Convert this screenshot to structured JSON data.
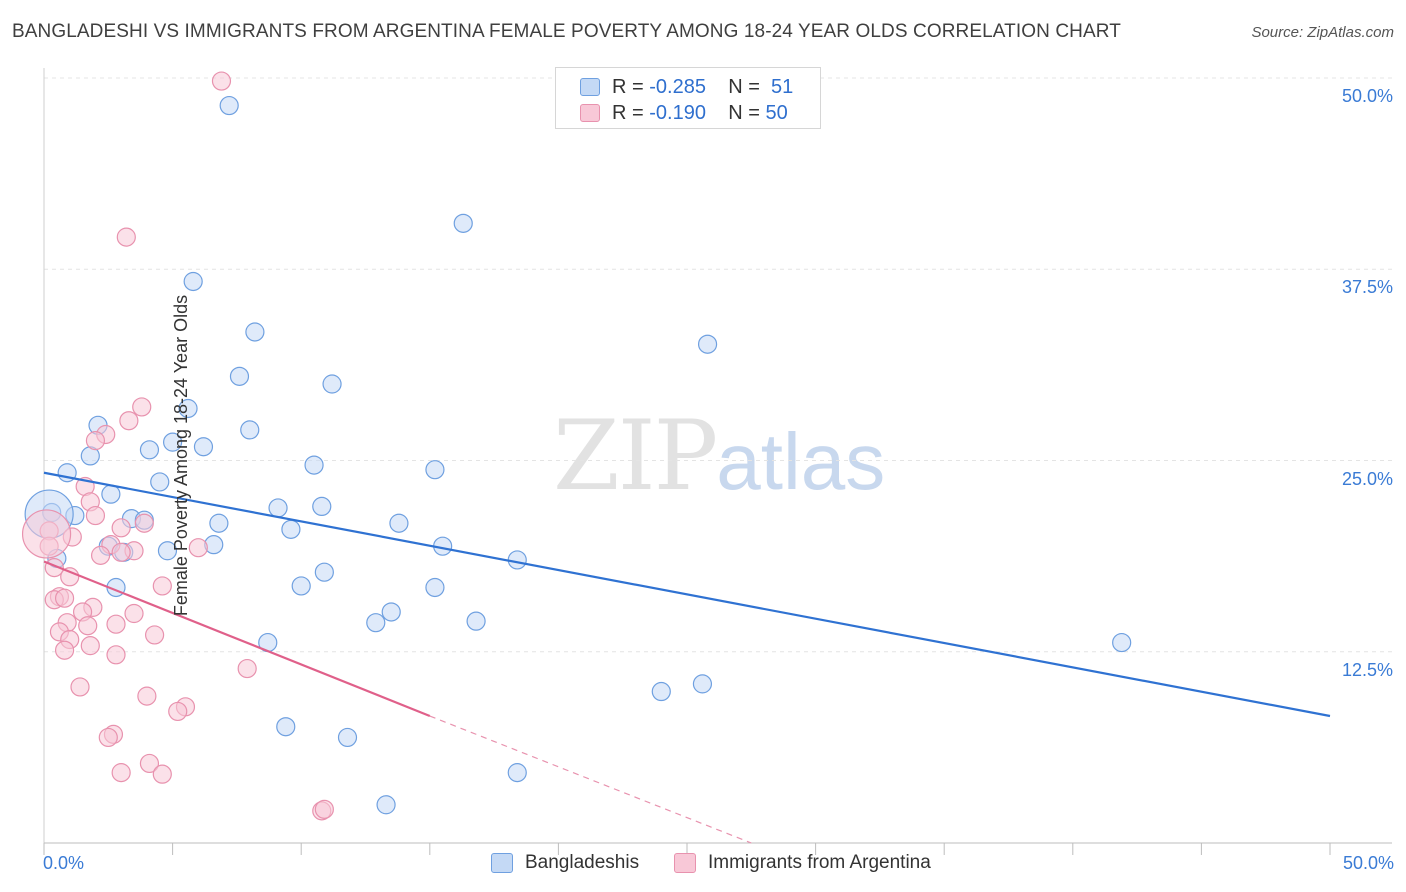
{
  "header": {
    "title": "BANGLADESHI VS IMMIGRANTS FROM ARGENTINA FEMALE POVERTY AMONG 18-24 YEAR OLDS CORRELATION CHART",
    "source": "Source: ZipAtlas.com"
  },
  "watermark": {
    "zip": "ZIP",
    "atlas": "atlas"
  },
  "legend_top": {
    "rows": [
      {
        "r_label": "R =",
        "r_value": "-0.285",
        "n_label": "N =",
        "n_value": "51"
      },
      {
        "r_label": "R =",
        "r_value": "-0.190",
        "n_label": "N =",
        "n_value": "50"
      }
    ]
  },
  "chart_data": {
    "type": "scatter",
    "title": "BANGLADESHI VS IMMIGRANTS FROM ARGENTINA FEMALE POVERTY AMONG 18-24 YEAR OLDS CORRELATION CHART",
    "xlabel": "",
    "ylabel": "Female Poverty Among 18-24 Year Olds",
    "xlim": [
      0,
      50
    ],
    "ylim": [
      0,
      50
    ],
    "x_tick_labels": [
      "0.0%",
      "50.0%"
    ],
    "y_ticks": [
      12.5,
      25.0,
      37.5,
      50.0
    ],
    "y_tick_labels": [
      "12.5%",
      "25.0%",
      "37.5%",
      "50.0%"
    ],
    "grid": true,
    "legend_position": "bottom",
    "series": [
      {
        "name": "Bangladeshis",
        "color": "#6fa0e0",
        "fill": "#c4d9f5",
        "r": -0.285,
        "n": 51,
        "trend": {
          "x": [
            0,
            50
          ],
          "y": [
            24.2,
            8.3
          ]
        },
        "points": [
          [
            7.2,
            48.2
          ],
          [
            16.3,
            40.5
          ],
          [
            5.8,
            36.7
          ],
          [
            8.2,
            33.4
          ],
          [
            25.8,
            32.6
          ],
          [
            7.6,
            30.5
          ],
          [
            11.2,
            30.0
          ],
          [
            5.6,
            28.4
          ],
          [
            2.1,
            27.3
          ],
          [
            8.0,
            27.0
          ],
          [
            5.0,
            26.2
          ],
          [
            6.2,
            25.9
          ],
          [
            4.1,
            25.7
          ],
          [
            1.8,
            25.3
          ],
          [
            10.5,
            24.7
          ],
          [
            15.2,
            24.4
          ],
          [
            0.9,
            24.2
          ],
          [
            4.5,
            23.6
          ],
          [
            2.6,
            22.8
          ],
          [
            0.3,
            21.6
          ],
          [
            9.1,
            21.9
          ],
          [
            10.8,
            22.0
          ],
          [
            1.2,
            21.4
          ],
          [
            3.4,
            21.2
          ],
          [
            3.9,
            21.1
          ],
          [
            6.8,
            20.9
          ],
          [
            9.6,
            20.5
          ],
          [
            13.8,
            20.9
          ],
          [
            6.6,
            19.5
          ],
          [
            15.5,
            19.4
          ],
          [
            2.5,
            19.4
          ],
          [
            4.8,
            19.1
          ],
          [
            3.1,
            19.0
          ],
          [
            0.5,
            18.6
          ],
          [
            18.4,
            18.5
          ],
          [
            10.9,
            17.7
          ],
          [
            10.0,
            16.8
          ],
          [
            15.2,
            16.7
          ],
          [
            2.8,
            16.7
          ],
          [
            13.5,
            15.1
          ],
          [
            12.9,
            14.4
          ],
          [
            16.8,
            14.5
          ],
          [
            8.7,
            13.1
          ],
          [
            41.9,
            13.1
          ],
          [
            25.6,
            10.4
          ],
          [
            24.0,
            9.9
          ],
          [
            9.4,
            7.6
          ],
          [
            11.8,
            6.9
          ],
          [
            18.4,
            4.6
          ],
          [
            13.3,
            2.5
          ],
          [
            0.2,
            21.5
          ]
        ]
      },
      {
        "name": "Immigrants from Argentina",
        "color": "#e892ae",
        "fill": "#f8c8d7",
        "r": -0.19,
        "n": 50,
        "trend": {
          "x": [
            0,
            15
          ],
          "y": [
            18.4,
            8.3
          ]
        },
        "trend_dashed": {
          "x": [
            15,
            27.5
          ],
          "y": [
            8.3,
            0
          ]
        },
        "points": [
          [
            6.9,
            49.8
          ],
          [
            3.2,
            39.6
          ],
          [
            3.8,
            28.5
          ],
          [
            3.3,
            27.6
          ],
          [
            2.4,
            26.7
          ],
          [
            2.0,
            26.3
          ],
          [
            1.6,
            23.3
          ],
          [
            1.8,
            22.3
          ],
          [
            2.0,
            21.4
          ],
          [
            0.2,
            20.4
          ],
          [
            3.0,
            20.6
          ],
          [
            3.9,
            20.9
          ],
          [
            1.1,
            20.0
          ],
          [
            0.2,
            19.4
          ],
          [
            2.6,
            19.5
          ],
          [
            3.5,
            19.1
          ],
          [
            3.0,
            19.0
          ],
          [
            6.0,
            19.3
          ],
          [
            2.2,
            18.8
          ],
          [
            0.4,
            18.0
          ],
          [
            1.0,
            17.4
          ],
          [
            4.6,
            16.8
          ],
          [
            0.6,
            16.1
          ],
          [
            0.4,
            15.9
          ],
          [
            0.8,
            16.0
          ],
          [
            1.9,
            15.4
          ],
          [
            1.5,
            15.1
          ],
          [
            3.5,
            15.0
          ],
          [
            0.9,
            14.4
          ],
          [
            1.7,
            14.2
          ],
          [
            2.8,
            14.3
          ],
          [
            0.6,
            13.8
          ],
          [
            4.3,
            13.6
          ],
          [
            1.0,
            13.3
          ],
          [
            1.8,
            12.9
          ],
          [
            0.8,
            12.6
          ],
          [
            2.8,
            12.3
          ],
          [
            7.9,
            11.4
          ],
          [
            1.4,
            10.2
          ],
          [
            4.0,
            9.6
          ],
          [
            5.5,
            8.9
          ],
          [
            5.2,
            8.6
          ],
          [
            2.7,
            7.1
          ],
          [
            2.5,
            6.9
          ],
          [
            4.1,
            5.2
          ],
          [
            3.0,
            4.6
          ],
          [
            4.6,
            4.5
          ],
          [
            10.8,
            2.1
          ],
          [
            10.9,
            2.2
          ],
          [
            0.1,
            20.2
          ]
        ]
      }
    ]
  }
}
